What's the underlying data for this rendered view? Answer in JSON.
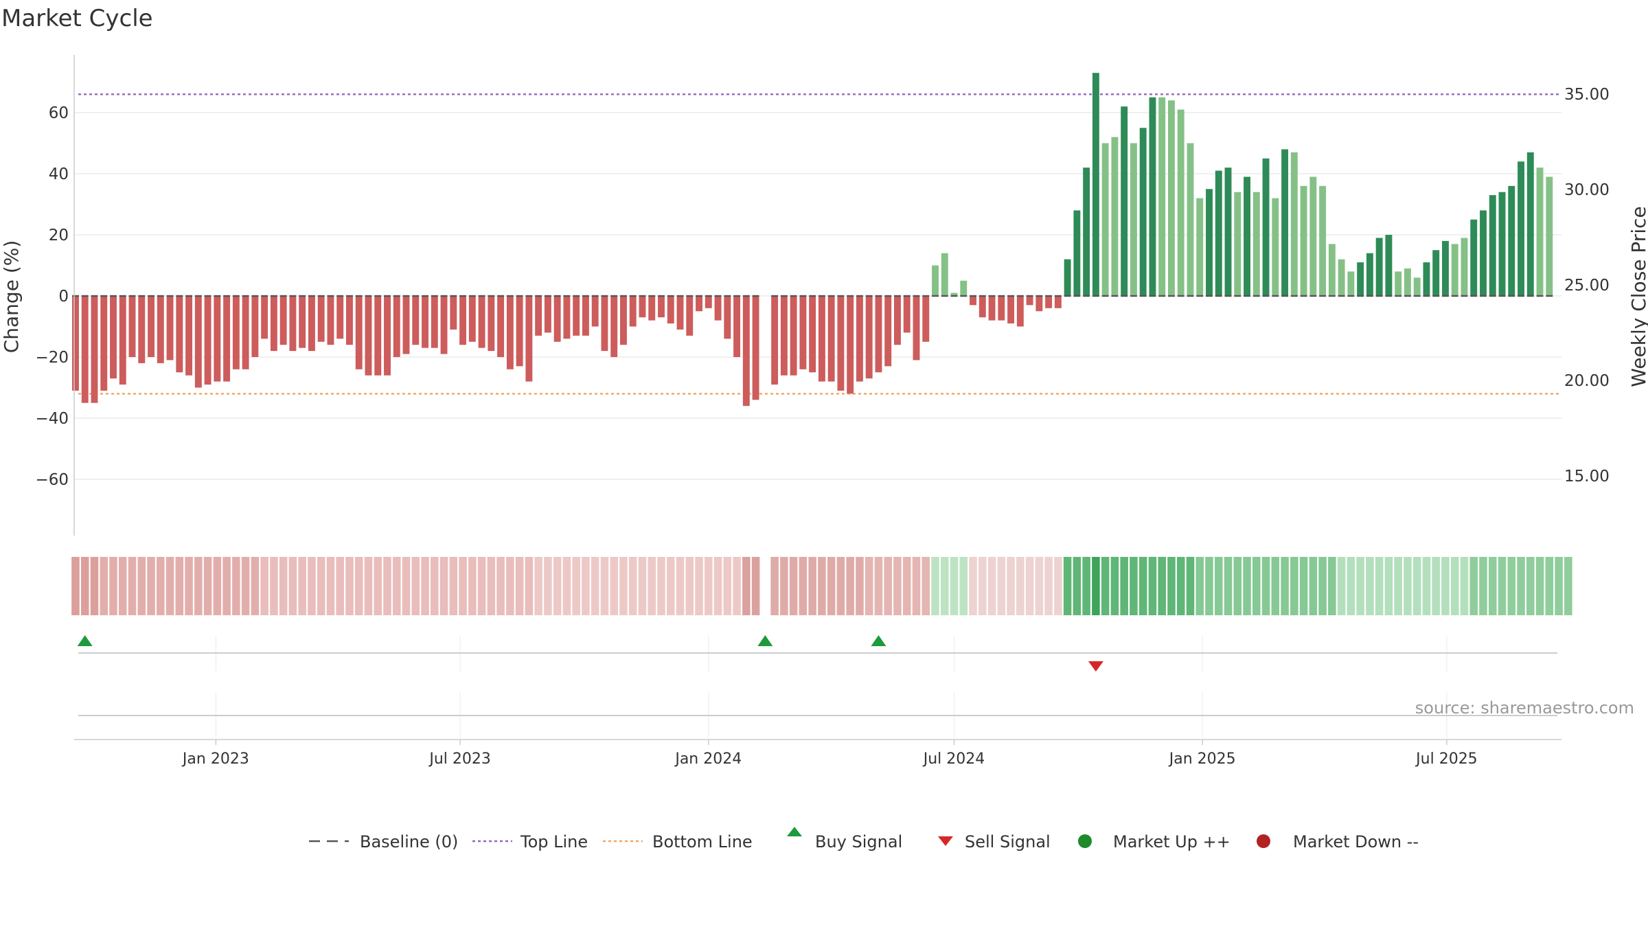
{
  "chart_data": {
    "type": "bar",
    "title": "Market Cycle",
    "ylabel_left": "Change (%)",
    "ylabel_right": "Weekly Close Price",
    "ylim_left": [
      -80,
      80
    ],
    "ylim_right": [
      10,
      37
    ],
    "yticks_left": [
      60,
      40,
      20,
      0,
      -20,
      -40,
      -60
    ],
    "ytick_labels_left": [
      "60",
      "40",
      "20",
      "0",
      "−20",
      "−40",
      "−60"
    ],
    "yticks_right": [
      35,
      30,
      25,
      20,
      15
    ],
    "ytick_labels_right": [
      "35.00",
      "30.00",
      "25.00",
      "20.00",
      "15.00"
    ],
    "x_start": "2022-09-18",
    "x_end": "2025-09-24",
    "xticks": [
      "2023-01-01",
      "2023-07-01",
      "2024-01-01",
      "2024-07-01",
      "2025-01-01",
      "2025-07-01"
    ],
    "xtick_labels": [
      "Jan 2023",
      "Jul 2023",
      "Jan 2024",
      "Jul 2024",
      "Jan 2025",
      "Jul 2025"
    ],
    "first_week": "2022-09-19",
    "top_line": 66,
    "bottom_line": -32,
    "baseline": 0,
    "grid": true,
    "values": [
      -31,
      -35,
      -35,
      -31,
      -27,
      -29,
      -20,
      -22,
      -20,
      -22,
      -21,
      -25,
      -26,
      -30,
      -29,
      -28,
      -28,
      -24,
      -24,
      -20,
      -14,
      -18,
      -16,
      -18,
      -17,
      -18,
      -15,
      -16,
      -14,
      -16,
      -24,
      -26,
      -26,
      -26,
      -20,
      -19,
      -16,
      -17,
      -17,
      -19,
      -11,
      -16,
      -15,
      -17,
      -18,
      -20,
      -24,
      -23,
      -28,
      -13,
      -12,
      -15,
      -14,
      -13,
      -13,
      -10,
      -18,
      -20,
      -16,
      -10,
      -7,
      -8,
      -7,
      -9,
      -11,
      -13,
      -5,
      -4,
      -8,
      -14,
      -20,
      -36,
      -34,
      null,
      -29,
      -26,
      -26,
      -24,
      -25,
      -28,
      -28,
      -31,
      -32,
      -28,
      -27,
      -25,
      -23,
      -16,
      -12,
      -21,
      -15,
      10,
      14,
      1,
      5,
      -3,
      -7,
      -8,
      -8,
      -9,
      -10,
      -3,
      -5,
      -4,
      -4,
      12,
      28,
      42,
      73,
      50,
      52,
      62,
      50,
      55,
      65,
      65,
      64,
      61,
      50,
      32,
      35,
      41,
      42,
      34,
      39,
      34,
      45,
      32,
      48,
      47,
      36,
      39,
      36,
      17,
      12,
      8,
      11,
      14,
      19,
      20,
      8,
      9,
      6,
      11,
      15,
      18,
      17,
      19,
      25,
      28,
      33,
      34,
      36,
      44,
      47,
      42,
      39
    ],
    "intensity": [
      3,
      3,
      3,
      3,
      3,
      3,
      3,
      3,
      3,
      3,
      3,
      3,
      3,
      3,
      3,
      3,
      3,
      3,
      3,
      3,
      3,
      3,
      3,
      3,
      3,
      3,
      3,
      3,
      3,
      3,
      3,
      3,
      3,
      3,
      3,
      3,
      3,
      3,
      3,
      3,
      3,
      3,
      3,
      3,
      3,
      3,
      3,
      3,
      3,
      3,
      3,
      3,
      3,
      3,
      3,
      3,
      3,
      3,
      3,
      3,
      3,
      3,
      3,
      3,
      3,
      3,
      3,
      3,
      3,
      3,
      3,
      3,
      3,
      0,
      3,
      3,
      3,
      3,
      3,
      3,
      3,
      3,
      3,
      3,
      3,
      3,
      3,
      3,
      3,
      3,
      3,
      3,
      2,
      3,
      2,
      3,
      3,
      3,
      3,
      3,
      3,
      3,
      3,
      3,
      3,
      1,
      1,
      1,
      1,
      2,
      2,
      1,
      2,
      1,
      1,
      2,
      2,
      2,
      2,
      2,
      1,
      1,
      1,
      2,
      1,
      2,
      1,
      2,
      1,
      2,
      2,
      2,
      2,
      2,
      2,
      2,
      1,
      1,
      1,
      1,
      2,
      2,
      2,
      1,
      1,
      1,
      2,
      2,
      1,
      1,
      1,
      1,
      1,
      1,
      1,
      2,
      2
    ],
    "strip_colors": [
      "#db9f9c",
      "#db9f9c",
      "#db9f9c",
      "#e2aeab",
      "#e2aeab",
      "#e2aeab",
      "#e2aeab",
      "#e2aeab",
      "#e2aeab",
      "#e2aeab",
      "#e2aeab",
      "#e2aeab",
      "#e2aeab",
      "#e2aeab",
      "#e2aeab",
      "#e2aeab",
      "#e2aeab",
      "#e2aeab",
      "#e2aeab",
      "#e2aeab",
      "#e8bdbb",
      "#e8bdbb",
      "#e8bdbb",
      "#e8bdbb",
      "#e8bdbb",
      "#e8bdbb",
      "#e8bdbb",
      "#e8bdbb",
      "#e8bdbb",
      "#e8bdbb",
      "#e8bdbb",
      "#e8bdbb",
      "#e8bdbb",
      "#e8bdbb",
      "#e8bdbb",
      "#e8bdbb",
      "#e8bdbb",
      "#e8bdbb",
      "#e8bdbb",
      "#e8bdbb",
      "#e8bdbb",
      "#e8bdbb",
      "#e8bdbb",
      "#e8bdbb",
      "#e8bdbb",
      "#e8bdbb",
      "#e8bdbb",
      "#e8bdbb",
      "#e8bdbb",
      "#ecc9c7",
      "#ecc9c7",
      "#ecc9c7",
      "#ecc9c7",
      "#ecc9c7",
      "#ecc9c7",
      "#ecc9c7",
      "#ecc9c7",
      "#ecc9c7",
      "#ecc9c7",
      "#ecc9c7",
      "#ecc9c7",
      "#ecc9c7",
      "#ecc9c7",
      "#ecc9c7",
      "#ecc9c7",
      "#ecc9c7",
      "#ecc9c7",
      "#ecc9c7",
      "#ecc9c7",
      "#ecc9c7",
      "#ecc9c7",
      "#d9a29f",
      "#d9a29f",
      null,
      "#dfaba8",
      "#dfaba8",
      "#dfaba8",
      "#dfaba8",
      "#dfaba8",
      "#dfaba8",
      "#dfaba8",
      "#dfaba8",
      "#dfaba8",
      "#dfaba8",
      "#e4b5b2",
      "#e4b5b2",
      "#e4b5b2",
      "#e4b5b2",
      "#e4b5b2",
      "#e4b5b2",
      "#e4b5b2",
      "#bde3c3",
      "#bde3c3",
      "#bde3c3",
      "#bde3c3",
      "#ecd2d0",
      "#ecd2d0",
      "#ecd2d0",
      "#ecd2d0",
      "#ecd2d0",
      "#ecd2d0",
      "#ecd2d0",
      "#ecd2d0",
      "#ecd2d0",
      "#ecd2d0",
      "#5fb677",
      "#5fb677",
      "#5fb677",
      "#3fa35c",
      "#5fb677",
      "#5fb677",
      "#5fb677",
      "#5fb677",
      "#5fb677",
      "#5fb677",
      "#5fb677",
      "#5fb677",
      "#5fb677",
      "#5fb677",
      "#86c995",
      "#86c995",
      "#86c995",
      "#86c995",
      "#86c995",
      "#86c995",
      "#86c995",
      "#86c995",
      "#86c995",
      "#86c995",
      "#86c995",
      "#86c995",
      "#86c995",
      "#86c995",
      "#86c995",
      "#b3dfbd",
      "#b3dfbd",
      "#b3dfbd",
      "#b3dfbd",
      "#b3dfbd",
      "#b3dfbd",
      "#b3dfbd",
      "#b3dfbd",
      "#b3dfbd",
      "#b3dfbd",
      "#b3dfbd",
      "#b3dfbd",
      "#b3dfbd",
      "#b3dfbd",
      "#8fcd9c",
      "#8fcd9c",
      "#8fcd9c",
      "#8fcd9c",
      "#8fcd9c",
      "#8fcd9c",
      "#8fcd9c",
      "#8fcd9c",
      "#8fcd9c",
      "#8fcd9c",
      "#8fcd9c"
    ],
    "buy_signals": [
      "2022-09-26",
      "2024-02-12",
      "2024-05-06"
    ],
    "sell_signals": [
      "2024-10-14"
    ],
    "legend": [
      {
        "label": "Baseline (0)",
        "kind": "dash"
      },
      {
        "label": "Top Line",
        "kind": "dot-purple"
      },
      {
        "label": "Bottom Line",
        "kind": "dot-orange"
      },
      {
        "label": "Buy Signal",
        "kind": "tri-up"
      },
      {
        "label": "Sell Signal",
        "kind": "tri-down"
      },
      {
        "label": "Market Up ++",
        "kind": "circle-green"
      },
      {
        "label": "Market Down --",
        "kind": "circle-red"
      }
    ],
    "legend_position": "bottom-center",
    "source": "source: sharemaestro.com"
  },
  "colors": {
    "pos_dark": "#2e8b57",
    "pos_light": "#85c187",
    "neg_dark": "#cd5c5c",
    "neg_light": "#e9967a",
    "top_line": "#9467bd",
    "bottom_line": "#f4a460",
    "baseline": "#555555",
    "buy": "#1e9a3c",
    "sell": "#d62728",
    "market_up": "#1f8a2a",
    "market_down": "#b22222",
    "grid": "#e6e6e6",
    "text": "#333333"
  }
}
